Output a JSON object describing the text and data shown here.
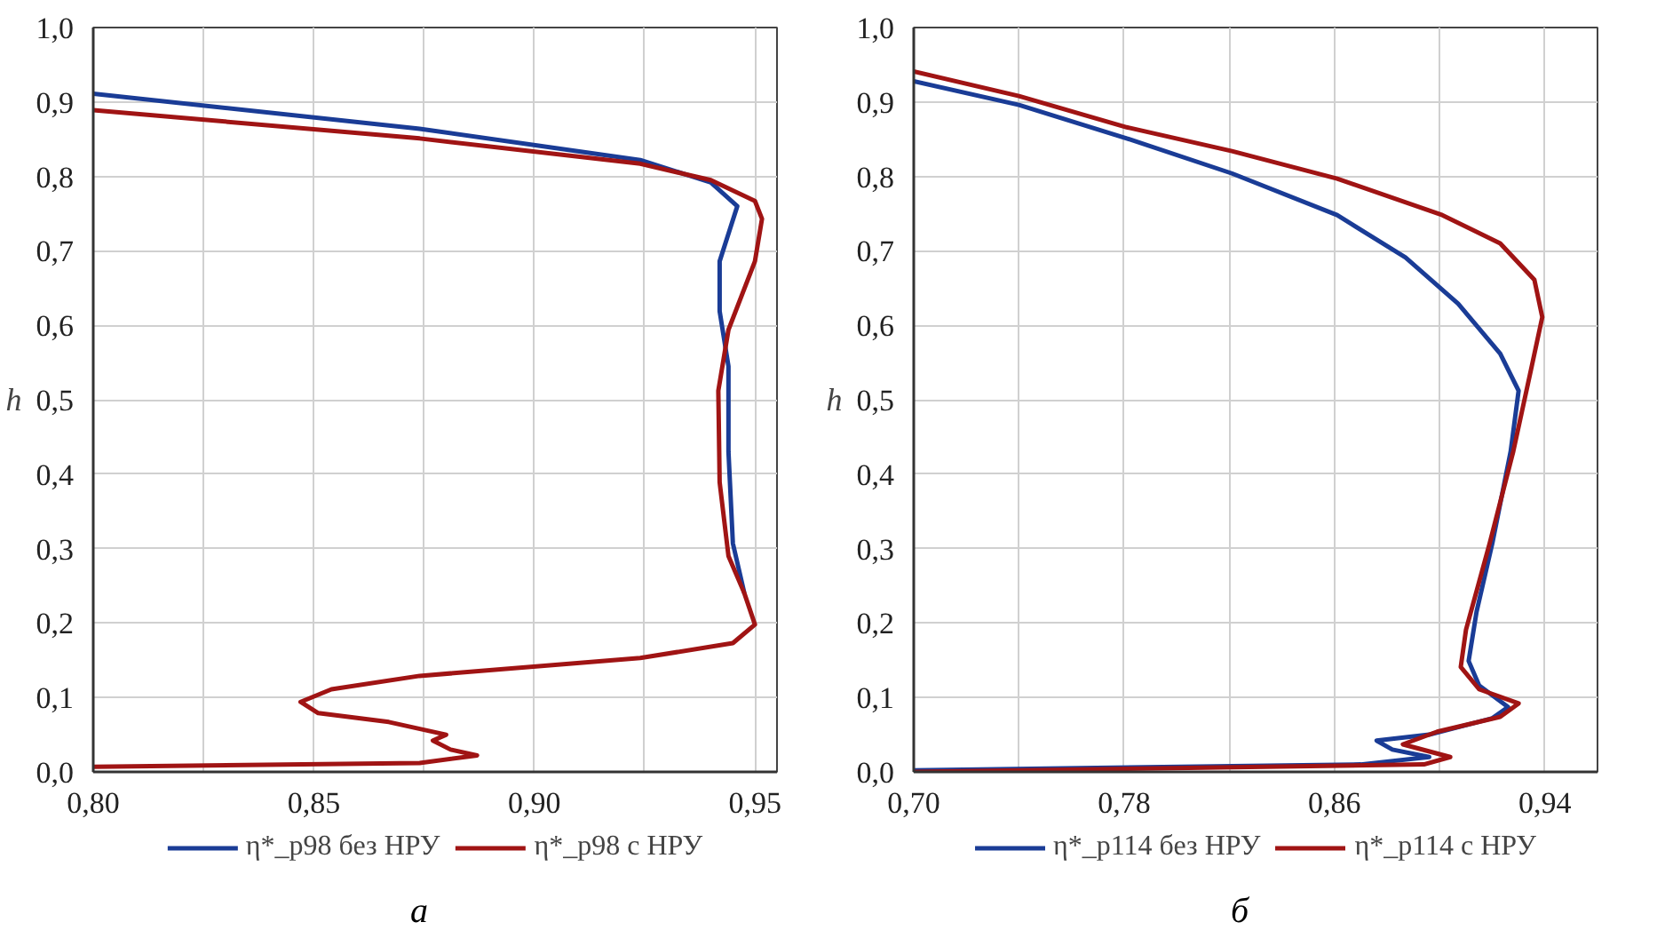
{
  "chart_data": [
    {
      "type": "line",
      "ylabel": "h",
      "annotations": [
        "а"
      ],
      "legend": "bottom",
      "grid": true,
      "line_style": "solid",
      "xlim": [
        0.8,
        0.955
      ],
      "ylim": [
        0,
        1
      ],
      "xticks": [
        {
          "value": 0.8,
          "label": "0,80"
        },
        {
          "value": 0.825,
          "label": null
        },
        {
          "value": 0.85,
          "label": "0,85"
        },
        {
          "value": 0.875,
          "label": null
        },
        {
          "value": 0.9,
          "label": "0,90"
        },
        {
          "value": 0.925,
          "label": null
        },
        {
          "value": 0.95,
          "label": "0,95"
        }
      ],
      "yticks": [
        {
          "value": 0,
          "label": "0,0"
        },
        {
          "value": 0.1,
          "label": "0,1"
        },
        {
          "value": 0.2,
          "label": "0,2"
        },
        {
          "value": 0.3,
          "label": "0,3"
        },
        {
          "value": 0.4,
          "label": "0,4"
        },
        {
          "value": 0.5,
          "label": "0,5"
        },
        {
          "value": 0.6,
          "label": "0,6"
        },
        {
          "value": 0.7,
          "label": "0,7"
        },
        {
          "value": 0.8,
          "label": "0,8"
        },
        {
          "value": 0.9,
          "label": "0,9"
        },
        {
          "value": 1,
          "label": "1,0"
        }
      ],
      "series": [
        {
          "name": "η*_р98 без НРУ",
          "color": "#1a3c96",
          "x": [
            0.8,
            0.874,
            0.924,
            0.94,
            0.946,
            0.942,
            0.942,
            0.944,
            0.944,
            0.945,
            0.9476
          ],
          "values": [
            0.911,
            0.864,
            0.822,
            0.792,
            0.76,
            0.686,
            0.619,
            0.545,
            0.43,
            0.307,
            0.24
          ]
        },
        {
          "name": "η*_р98 с НРУ",
          "color": "#a01414",
          "x": [
            0.8,
            0.874,
            0.924,
            0.94,
            0.95,
            0.9516,
            0.95,
            0.944,
            0.9417,
            0.942,
            0.944,
            0.9476,
            0.95,
            0.945,
            0.924,
            0.874,
            0.854,
            0.847,
            0.851,
            0.867,
            0.88,
            0.877,
            0.881,
            0.887,
            0.874,
            0.8
          ],
          "values": [
            0.889,
            0.851,
            0.817,
            0.795,
            0.767,
            0.743,
            0.686,
            0.594,
            0.512,
            0.389,
            0.29,
            0.24,
            0.198,
            0.173,
            0.153,
            0.129,
            0.111,
            0.094,
            0.079,
            0.067,
            0.05,
            0.042,
            0.03,
            0.022,
            0.012,
            0.007
          ]
        }
      ]
    },
    {
      "type": "line",
      "ylabel": "h",
      "annotations": [
        "б"
      ],
      "legend": "bottom",
      "grid": true,
      "line_style": "solid",
      "xlim": [
        0.7,
        0.96
      ],
      "ylim": [
        0,
        1
      ],
      "xticks": [
        {
          "value": 0.7,
          "label": "0,70"
        },
        {
          "value": 0.74,
          "label": null
        },
        {
          "value": 0.78,
          "label": "0,78"
        },
        {
          "value": 0.82,
          "label": null
        },
        {
          "value": 0.86,
          "label": "0,86"
        },
        {
          "value": 0.9,
          "label": null
        },
        {
          "value": 0.94,
          "label": "0,94"
        }
      ],
      "yticks": [
        {
          "value": 0,
          "label": "0,0"
        },
        {
          "value": 0.1,
          "label": "0,1"
        },
        {
          "value": 0.2,
          "label": "0,2"
        },
        {
          "value": 0.3,
          "label": "0,3"
        },
        {
          "value": 0.4,
          "label": "0,4"
        },
        {
          "value": 0.5,
          "label": "0,5"
        },
        {
          "value": 0.6,
          "label": "0,6"
        },
        {
          "value": 0.7,
          "label": "0,7"
        },
        {
          "value": 0.8,
          "label": "0,8"
        },
        {
          "value": 0.9,
          "label": "0,9"
        },
        {
          "value": 1,
          "label": "1,0"
        }
      ],
      "series": [
        {
          "name": "η*_р114 без НРУ",
          "color": "#1a3c96",
          "x": [
            0.7,
            0.74,
            0.781,
            0.821,
            0.861,
            0.887,
            0.907,
            0.923,
            0.93,
            0.927,
            0.92,
            0.914,
            0.911,
            0.915,
            0.926,
            0.92,
            0.896,
            0.876,
            0.882,
            0.896,
            0.87,
            0.7
          ],
          "values": [
            0.928,
            0.896,
            0.851,
            0.804,
            0.748,
            0.691,
            0.629,
            0.562,
            0.512,
            0.431,
            0.307,
            0.215,
            0.149,
            0.116,
            0.087,
            0.072,
            0.05,
            0.042,
            0.03,
            0.02,
            0.01,
            0.002
          ]
        },
        {
          "name": "η*_р114 с НРУ",
          "color": "#a01414",
          "x": [
            0.7,
            0.74,
            0.781,
            0.821,
            0.861,
            0.901,
            0.923,
            0.936,
            0.939,
            0.935,
            0.928,
            0.919,
            0.91,
            0.908,
            0.915,
            0.93,
            0.923,
            0.899,
            0.886,
            0.904,
            0.894,
            0.7
          ],
          "values": [
            0.941,
            0.908,
            0.866,
            0.834,
            0.797,
            0.748,
            0.71,
            0.661,
            0.611,
            0.545,
            0.431,
            0.307,
            0.191,
            0.141,
            0.111,
            0.092,
            0.074,
            0.054,
            0.037,
            0.02,
            0.01,
            0.0
          ]
        }
      ]
    }
  ]
}
